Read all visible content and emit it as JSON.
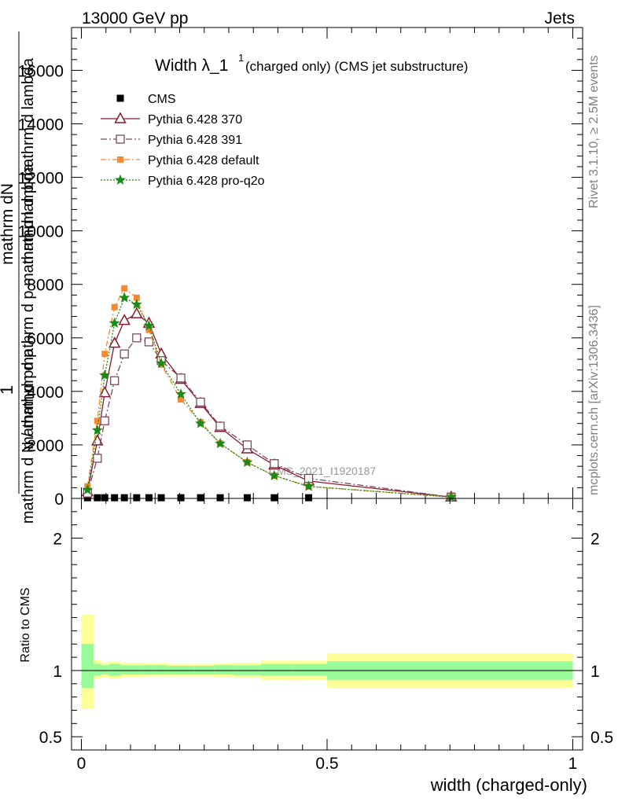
{
  "header": {
    "left": "13000 GeV pp",
    "right": "Jets"
  },
  "side": {
    "rivet": "Rivet 3.1.10, ≥ 2.5M events",
    "site": "mcplots.cern.ch [arXiv:1306.3436]"
  },
  "chart_data": [
    {
      "type": "line",
      "title_main": "Width λ_1",
      "title_sup": "1",
      "title_rest": "(charged only) (CMS jet substructure)",
      "ylabel_top": "1",
      "ylabel_mid": "mathrm dN",
      "ylabel_bottom": "mathrm d N / mathrm d p",
      "ylabel_overlap1": "mathrm d p mathrm d lambda",
      "ylabel_overlap2": "mathrm d pmathrm d p mathrm d lambda",
      "watermark": "CMS_2021_I1920187",
      "xlim": [
        -0.02,
        1.02
      ],
      "ylim": [
        0,
        17600
      ],
      "yticks": [
        0,
        2000,
        4000,
        6000,
        8000,
        10000,
        12000,
        14000,
        16000
      ],
      "ytick_labels": [
        "0",
        "2000",
        "4000",
        "6000",
        "8000",
        "10000",
        "12000",
        "14000",
        "16000"
      ],
      "x": [
        0.0125,
        0.0325,
        0.0475,
        0.0675,
        0.0875,
        0.1125,
        0.1375,
        0.1625,
        0.2025,
        0.2425,
        0.2825,
        0.3375,
        0.3925,
        0.4625,
        0.7525
      ],
      "series": [
        {
          "name": "CMS",
          "marker": "square",
          "color": "#000000",
          "values": [
            25,
            25,
            25,
            25,
            25,
            25,
            25,
            25,
            25,
            25,
            25,
            25,
            25,
            25,
            25
          ]
        },
        {
          "name": "Pythia 6.428 370",
          "marker": "triangle",
          "color": "#8b1a2e",
          "dash": "",
          "values": [
            250,
            2150,
            3950,
            5800,
            6650,
            6900,
            6550,
            5400,
            4450,
            3550,
            2650,
            1850,
            1250,
            650,
            50
          ]
        },
        {
          "name": "Pythia 6.428 391",
          "marker": "opensquare",
          "color": "#7a4a5e",
          "dash": "8,3,2,3",
          "values": [
            200,
            1500,
            2900,
            4400,
            5400,
            6000,
            5850,
            5150,
            4500,
            3600,
            2700,
            2000,
            1300,
            750,
            50
          ]
        },
        {
          "name": "Pythia 6.428 default",
          "marker": "filledsquare",
          "color": "#f58a32",
          "dash": "7,3,2,3",
          "values": [
            450,
            2900,
            5400,
            7150,
            7850,
            7500,
            6300,
            5000,
            3700,
            2850,
            2050,
            1350,
            850,
            450,
            50
          ]
        },
        {
          "name": "Pythia 6.428 pro-q2o",
          "marker": "star",
          "color": "#1a8a1a",
          "dash": "2,2",
          "values": [
            320,
            2550,
            4600,
            6550,
            7500,
            7250,
            6450,
            5050,
            3900,
            2800,
            2050,
            1350,
            850,
            450,
            50
          ]
        }
      ]
    },
    {
      "type": "area",
      "ylabel": "Ratio to CMS",
      "xlabel": "width (charged-only)",
      "xlim": [
        -0.02,
        1.02
      ],
      "ylim": [
        0.4,
        2.3
      ],
      "yticks": [
        0.5,
        1,
        2
      ],
      "ytick_labels": [
        "0.5",
        "1",
        "2"
      ],
      "xticks": [
        0,
        0.5,
        1
      ],
      "xtick_labels": [
        "0",
        "0.5",
        "1"
      ],
      "bins": [
        {
          "x0": 0.0,
          "x1": 0.025,
          "inner": [
            0.87,
            1.2
          ],
          "outer": [
            0.71,
            1.42
          ]
        },
        {
          "x0": 0.025,
          "x1": 0.04,
          "inner": [
            0.96,
            1.05
          ],
          "outer": [
            0.94,
            1.08
          ]
        },
        {
          "x0": 0.04,
          "x1": 0.055,
          "inner": [
            0.97,
            1.04
          ],
          "outer": [
            0.95,
            1.06
          ]
        },
        {
          "x0": 0.055,
          "x1": 0.08,
          "inner": [
            0.96,
            1.05
          ],
          "outer": [
            0.94,
            1.07
          ]
        },
        {
          "x0": 0.08,
          "x1": 0.1,
          "inner": [
            0.97,
            1.04
          ],
          "outer": [
            0.95,
            1.06
          ]
        },
        {
          "x0": 0.1,
          "x1": 0.125,
          "inner": [
            0.97,
            1.04
          ],
          "outer": [
            0.95,
            1.06
          ]
        },
        {
          "x0": 0.125,
          "x1": 0.15,
          "inner": [
            0.97,
            1.04
          ],
          "outer": [
            0.955,
            1.055
          ]
        },
        {
          "x0": 0.15,
          "x1": 0.175,
          "inner": [
            0.97,
            1.04
          ],
          "outer": [
            0.955,
            1.055
          ]
        },
        {
          "x0": 0.175,
          "x1": 0.23,
          "inner": [
            0.97,
            1.035
          ],
          "outer": [
            0.955,
            1.05
          ]
        },
        {
          "x0": 0.23,
          "x1": 0.27,
          "inner": [
            0.97,
            1.035
          ],
          "outer": [
            0.955,
            1.05
          ]
        },
        {
          "x0": 0.27,
          "x1": 0.31,
          "inner": [
            0.97,
            1.04
          ],
          "outer": [
            0.95,
            1.055
          ]
        },
        {
          "x0": 0.31,
          "x1": 0.365,
          "inner": [
            0.965,
            1.04
          ],
          "outer": [
            0.945,
            1.06
          ]
        },
        {
          "x0": 0.365,
          "x1": 0.43,
          "inner": [
            0.96,
            1.05
          ],
          "outer": [
            0.93,
            1.075
          ]
        },
        {
          "x0": 0.43,
          "x1": 0.5,
          "inner": [
            0.96,
            1.05
          ],
          "outer": [
            0.93,
            1.075
          ]
        },
        {
          "x0": 0.5,
          "x1": 1.0,
          "inner": [
            0.93,
            1.07
          ],
          "outer": [
            0.87,
            1.13
          ]
        }
      ],
      "colors": {
        "inner": "#99fa99",
        "outer": "#ffff99"
      }
    }
  ]
}
